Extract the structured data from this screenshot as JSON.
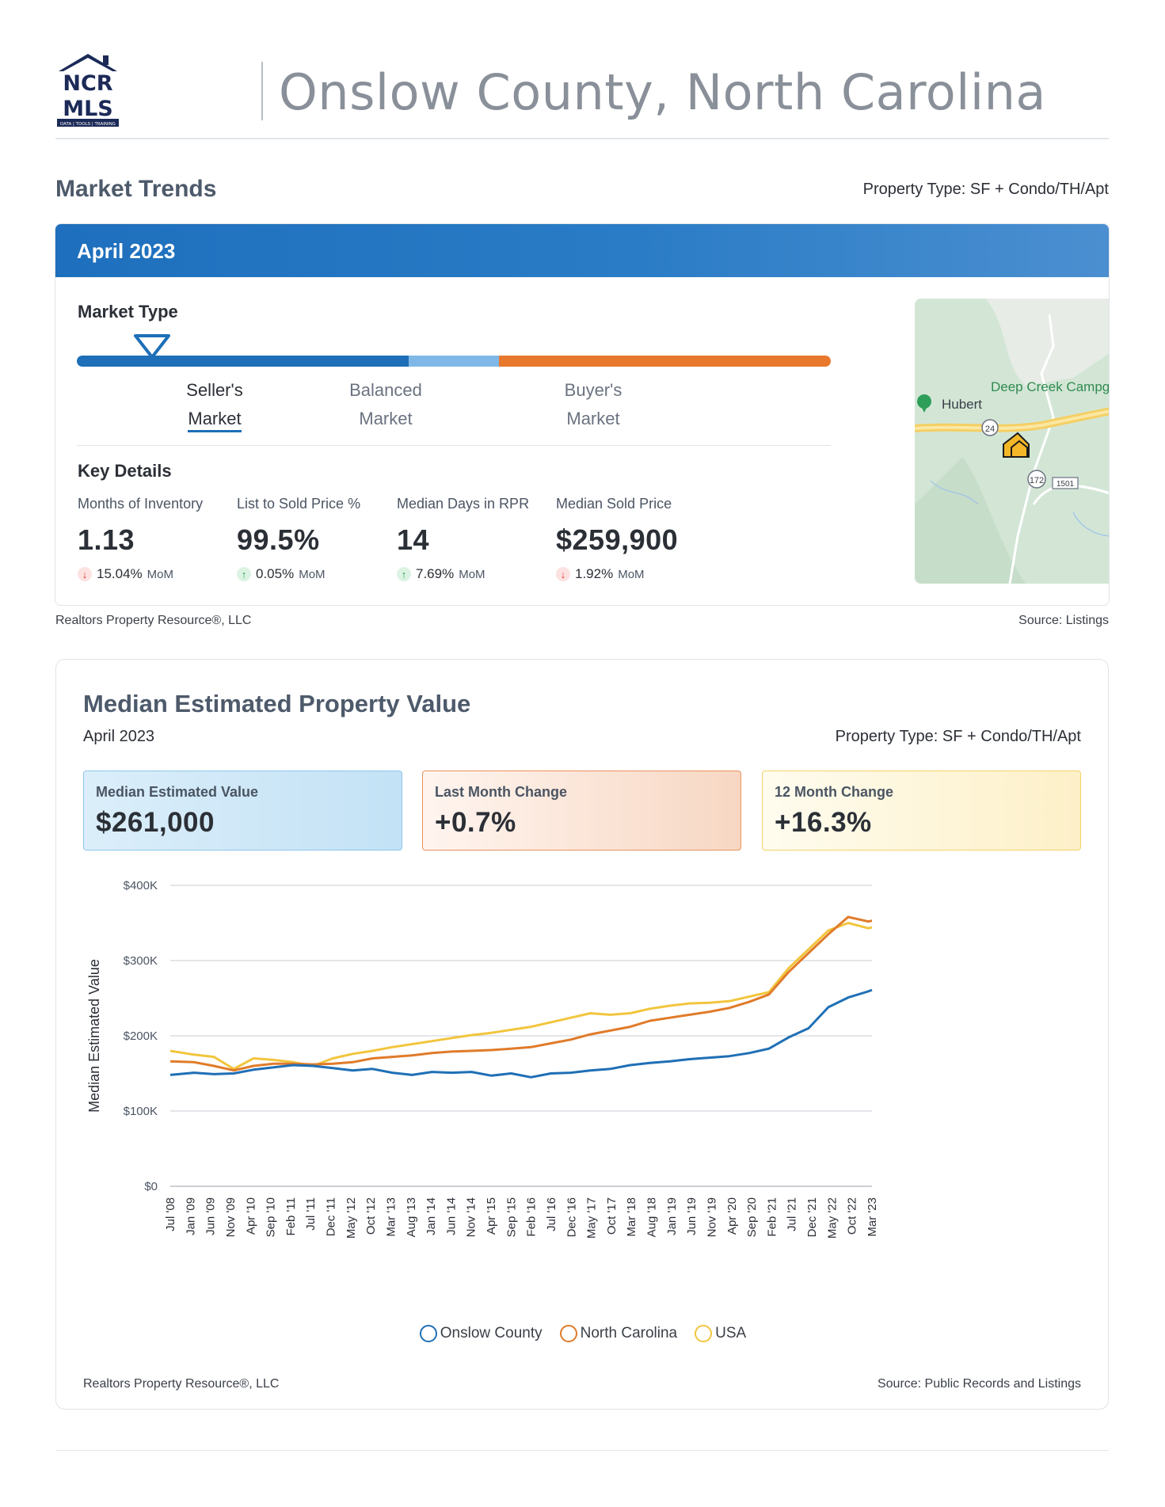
{
  "header": {
    "logo_text_top": "NCR",
    "logo_text_bottom": "MLS",
    "logo_tagline": "DATA | TOOLS | TRAINING",
    "title": "Onslow County, North Carolina"
  },
  "market_trends": {
    "title": "Market Trends",
    "property_type": "Property Type: SF + Condo/TH/Apt",
    "period": "April 2023",
    "market_type_label": "Market Type",
    "market_type_position": 0.1,
    "colors": {
      "sellers": "#1d6fb7",
      "balanced": "#7fb8e6",
      "buyers": "#e8782c"
    },
    "segments": [
      {
        "line1": "Seller's",
        "line2": "Market",
        "active": true
      },
      {
        "line1": "Balanced",
        "line2": "Market",
        "active": false
      },
      {
        "line1": "Buyer's",
        "line2": "Market",
        "active": false
      }
    ],
    "key_details_label": "Key Details",
    "key_details": [
      {
        "label": "Months of Inventory",
        "value": "1.13",
        "change": "15.04%",
        "direction": "down",
        "unit": "MoM"
      },
      {
        "label": "List to Sold Price %",
        "value": "99.5%",
        "change": "0.05%",
        "direction": "up",
        "unit": "MoM"
      },
      {
        "label": "Median Days in RPR",
        "value": "14",
        "change": "7.69%",
        "direction": "up",
        "unit": "MoM"
      },
      {
        "label": "Median Sold Price",
        "value": "$259,900",
        "change": "1.92%",
        "direction": "down",
        "unit": "MoM"
      }
    ],
    "map": {
      "place_1": "Deep Creek Campgr",
      "place_2": "Hubert",
      "route_1": "24",
      "route_2": "172",
      "route_3": "1501"
    },
    "footnote_left": "Realtors Property Resource®, LLC",
    "footnote_right": "Source: Listings"
  },
  "median_value": {
    "title": "Median Estimated Property Value",
    "period": "April 2023",
    "property_type": "Property Type: SF + Condo/TH/Apt",
    "stats": [
      {
        "label": "Median Estimated Value",
        "value": "$261,000"
      },
      {
        "label": "Last Month Change",
        "value": "+0.7%"
      },
      {
        "label": "12 Month Change",
        "value": "+16.3%"
      }
    ],
    "footnote_left": "Realtors Property Resource®, LLC",
    "footnote_right": "Source: Public Records and Listings"
  },
  "chart_data": {
    "type": "line",
    "ylabel": "Median Estimated Value",
    "ylim": [
      0,
      400000
    ],
    "yticks": [
      {
        "value": 0,
        "label": "$0"
      },
      {
        "value": 100000,
        "label": "$100K"
      },
      {
        "value": 200000,
        "label": "$200K"
      },
      {
        "value": 300000,
        "label": "$300K"
      },
      {
        "value": 400000,
        "label": "$400K"
      }
    ],
    "x_start": "2008-07",
    "x_end": "2023-04",
    "x_tick_labels": [
      "Jul '08",
      "Jan '09",
      "Jun '09",
      "Nov '09",
      "Apr '10",
      "Sep '10",
      "Feb '11",
      "Jul '11",
      "Dec '11",
      "May '12",
      "Oct '12",
      "Mar '13",
      "Aug '13",
      "Jan '14",
      "Jun '14",
      "Nov '14",
      "Apr '15",
      "Sep '15",
      "Feb '16",
      "Jul '16",
      "Dec '16",
      "May '17",
      "Oct '17",
      "Mar '18",
      "Aug '18",
      "Jan '19",
      "Jun '19",
      "Nov '19",
      "Apr '20",
      "Sep '20",
      "Feb '21",
      "Jul '21",
      "Dec '21",
      "May '22",
      "Oct '22",
      "Mar '23"
    ],
    "grid": true,
    "legend_position": "bottom",
    "series": [
      {
        "name": "Onslow County",
        "color": "#1f6fb5",
        "points": [
          [
            "2008-07",
            148000
          ],
          [
            "2009-01",
            151000
          ],
          [
            "2009-06",
            149000
          ],
          [
            "2009-11",
            150000
          ],
          [
            "2010-04",
            155000
          ],
          [
            "2010-09",
            158000
          ],
          [
            "2011-02",
            161000
          ],
          [
            "2011-07",
            160000
          ],
          [
            "2011-12",
            157000
          ],
          [
            "2012-05",
            154000
          ],
          [
            "2012-10",
            156000
          ],
          [
            "2013-03",
            151000
          ],
          [
            "2013-08",
            148000
          ],
          [
            "2014-01",
            152000
          ],
          [
            "2014-06",
            151000
          ],
          [
            "2014-11",
            152000
          ],
          [
            "2015-04",
            147000
          ],
          [
            "2015-09",
            150000
          ],
          [
            "2016-02",
            145000
          ],
          [
            "2016-07",
            150000
          ],
          [
            "2016-12",
            151000
          ],
          [
            "2017-05",
            154000
          ],
          [
            "2017-10",
            156000
          ],
          [
            "2018-03",
            161000
          ],
          [
            "2018-08",
            164000
          ],
          [
            "2019-01",
            166000
          ],
          [
            "2019-06",
            169000
          ],
          [
            "2019-11",
            171000
          ],
          [
            "2020-04",
            173000
          ],
          [
            "2020-09",
            177000
          ],
          [
            "2021-02",
            183000
          ],
          [
            "2021-07",
            198000
          ],
          [
            "2021-12",
            210000
          ],
          [
            "2022-05",
            238000
          ],
          [
            "2022-10",
            251000
          ],
          [
            "2023-03",
            259000
          ],
          [
            "2023-04",
            261000
          ]
        ]
      },
      {
        "name": "North Carolina",
        "color": "#e07b2a",
        "points": [
          [
            "2008-07",
            166000
          ],
          [
            "2009-01",
            165000
          ],
          [
            "2009-06",
            160000
          ],
          [
            "2009-11",
            154000
          ],
          [
            "2010-04",
            160000
          ],
          [
            "2010-09",
            163000
          ],
          [
            "2011-02",
            163000
          ],
          [
            "2011-07",
            162000
          ],
          [
            "2011-12",
            163000
          ],
          [
            "2012-05",
            165000
          ],
          [
            "2012-10",
            170000
          ],
          [
            "2013-03",
            172000
          ],
          [
            "2013-08",
            174000
          ],
          [
            "2014-01",
            177000
          ],
          [
            "2014-06",
            179000
          ],
          [
            "2014-11",
            180000
          ],
          [
            "2015-04",
            181000
          ],
          [
            "2015-09",
            183000
          ],
          [
            "2016-02",
            185000
          ],
          [
            "2016-07",
            190000
          ],
          [
            "2016-12",
            195000
          ],
          [
            "2017-05",
            202000
          ],
          [
            "2017-10",
            207000
          ],
          [
            "2018-03",
            212000
          ],
          [
            "2018-08",
            220000
          ],
          [
            "2019-01",
            224000
          ],
          [
            "2019-06",
            228000
          ],
          [
            "2019-11",
            232000
          ],
          [
            "2020-04",
            237000
          ],
          [
            "2020-09",
            245000
          ],
          [
            "2021-02",
            255000
          ],
          [
            "2021-07",
            285000
          ],
          [
            "2021-12",
            310000
          ],
          [
            "2022-05",
            335000
          ],
          [
            "2022-10",
            358000
          ],
          [
            "2023-03",
            352000
          ],
          [
            "2023-04",
            353000
          ]
        ]
      },
      {
        "name": "USA",
        "color": "#f2c53d",
        "points": [
          [
            "2008-07",
            180000
          ],
          [
            "2009-01",
            175000
          ],
          [
            "2009-06",
            172000
          ],
          [
            "2009-11",
            156000
          ],
          [
            "2010-04",
            170000
          ],
          [
            "2010-09",
            168000
          ],
          [
            "2011-02",
            165000
          ],
          [
            "2011-07",
            160000
          ],
          [
            "2011-12",
            170000
          ],
          [
            "2012-05",
            176000
          ],
          [
            "2012-10",
            180000
          ],
          [
            "2013-03",
            185000
          ],
          [
            "2013-08",
            189000
          ],
          [
            "2014-01",
            193000
          ],
          [
            "2014-06",
            197000
          ],
          [
            "2014-11",
            201000
          ],
          [
            "2015-04",
            204000
          ],
          [
            "2015-09",
            208000
          ],
          [
            "2016-02",
            212000
          ],
          [
            "2016-07",
            218000
          ],
          [
            "2016-12",
            224000
          ],
          [
            "2017-05",
            230000
          ],
          [
            "2017-10",
            228000
          ],
          [
            "2018-03",
            230000
          ],
          [
            "2018-08",
            236000
          ],
          [
            "2019-01",
            240000
          ],
          [
            "2019-06",
            243000
          ],
          [
            "2019-11",
            244000
          ],
          [
            "2020-04",
            246000
          ],
          [
            "2020-09",
            252000
          ],
          [
            "2021-02",
            258000
          ],
          [
            "2021-07",
            290000
          ],
          [
            "2021-12",
            315000
          ],
          [
            "2022-05",
            340000
          ],
          [
            "2022-10",
            350000
          ],
          [
            "2023-03",
            343000
          ],
          [
            "2023-04",
            344000
          ]
        ]
      }
    ]
  }
}
